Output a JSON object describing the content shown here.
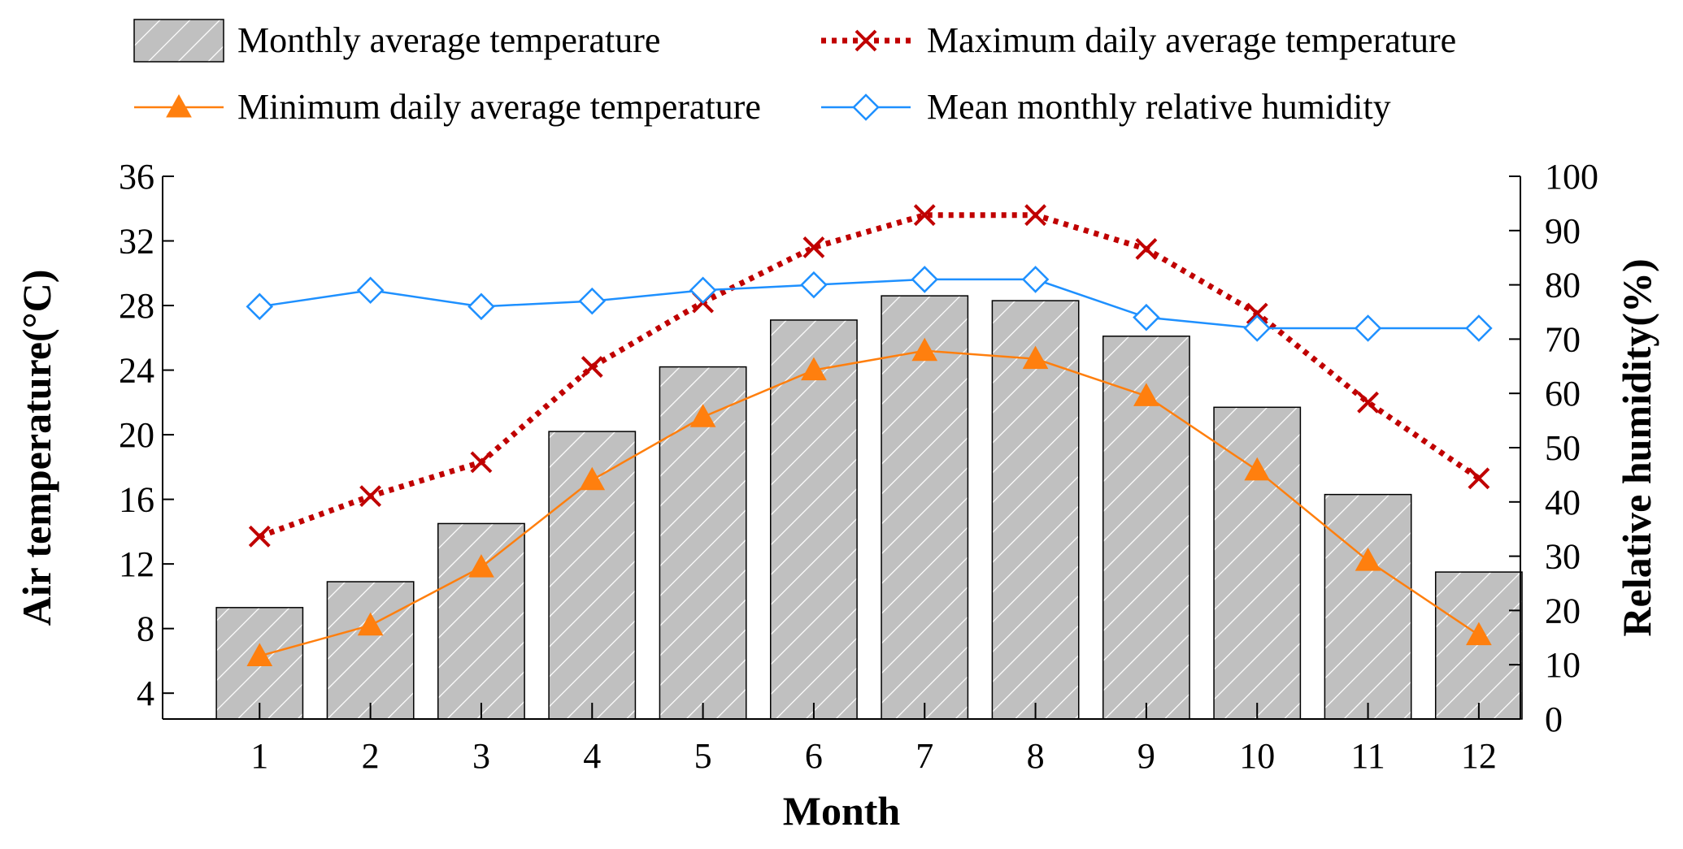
{
  "chart_data": {
    "type": "bar",
    "title": "",
    "xlabel": "Month",
    "ylabel": "Air temperature(°C)",
    "y2label": "Relative humidity(%)",
    "categories": [
      "1",
      "2",
      "3",
      "4",
      "5",
      "6",
      "7",
      "8",
      "9",
      "10",
      "11",
      "12"
    ],
    "ylim": [
      2.4,
      36
    ],
    "y_ticks": [
      4,
      8,
      12,
      16,
      20,
      24,
      28,
      32,
      36
    ],
    "y2lim": [
      0,
      100
    ],
    "y2_ticks": [
      0,
      10,
      20,
      30,
      40,
      50,
      60,
      70,
      80,
      90,
      100
    ],
    "series": [
      {
        "name": "Monthly average temperature",
        "kind": "bar",
        "axis": "left",
        "color": "#c0c0c0",
        "values": [
          9.3,
          10.9,
          14.5,
          20.2,
          24.2,
          27.1,
          28.6,
          28.3,
          26.1,
          21.7,
          16.3,
          11.5
        ]
      },
      {
        "name": "Maximum daily average temperature",
        "kind": "line",
        "axis": "left",
        "color": "#c00000",
        "marker": "x",
        "dash": true,
        "values": [
          13.7,
          16.2,
          18.3,
          24.2,
          28.2,
          31.6,
          33.6,
          33.6,
          31.5,
          27.5,
          22.0,
          17.3
        ]
      },
      {
        "name": "Minimum daily average temperature",
        "kind": "line",
        "axis": "left",
        "color": "#ff7f0e",
        "marker": "triangle",
        "values": [
          6.3,
          8.2,
          11.8,
          17.2,
          21.1,
          24.0,
          25.2,
          24.7,
          22.4,
          17.8,
          12.2,
          7.6
        ]
      },
      {
        "name": "Mean monthly relative humidity",
        "kind": "line",
        "axis": "right",
        "color": "#1e90ff",
        "marker": "diamond",
        "values": [
          76,
          79,
          76,
          77,
          79,
          80,
          81,
          81,
          74,
          72,
          72,
          72
        ]
      }
    ],
    "legend_position": "top",
    "grid": false
  }
}
